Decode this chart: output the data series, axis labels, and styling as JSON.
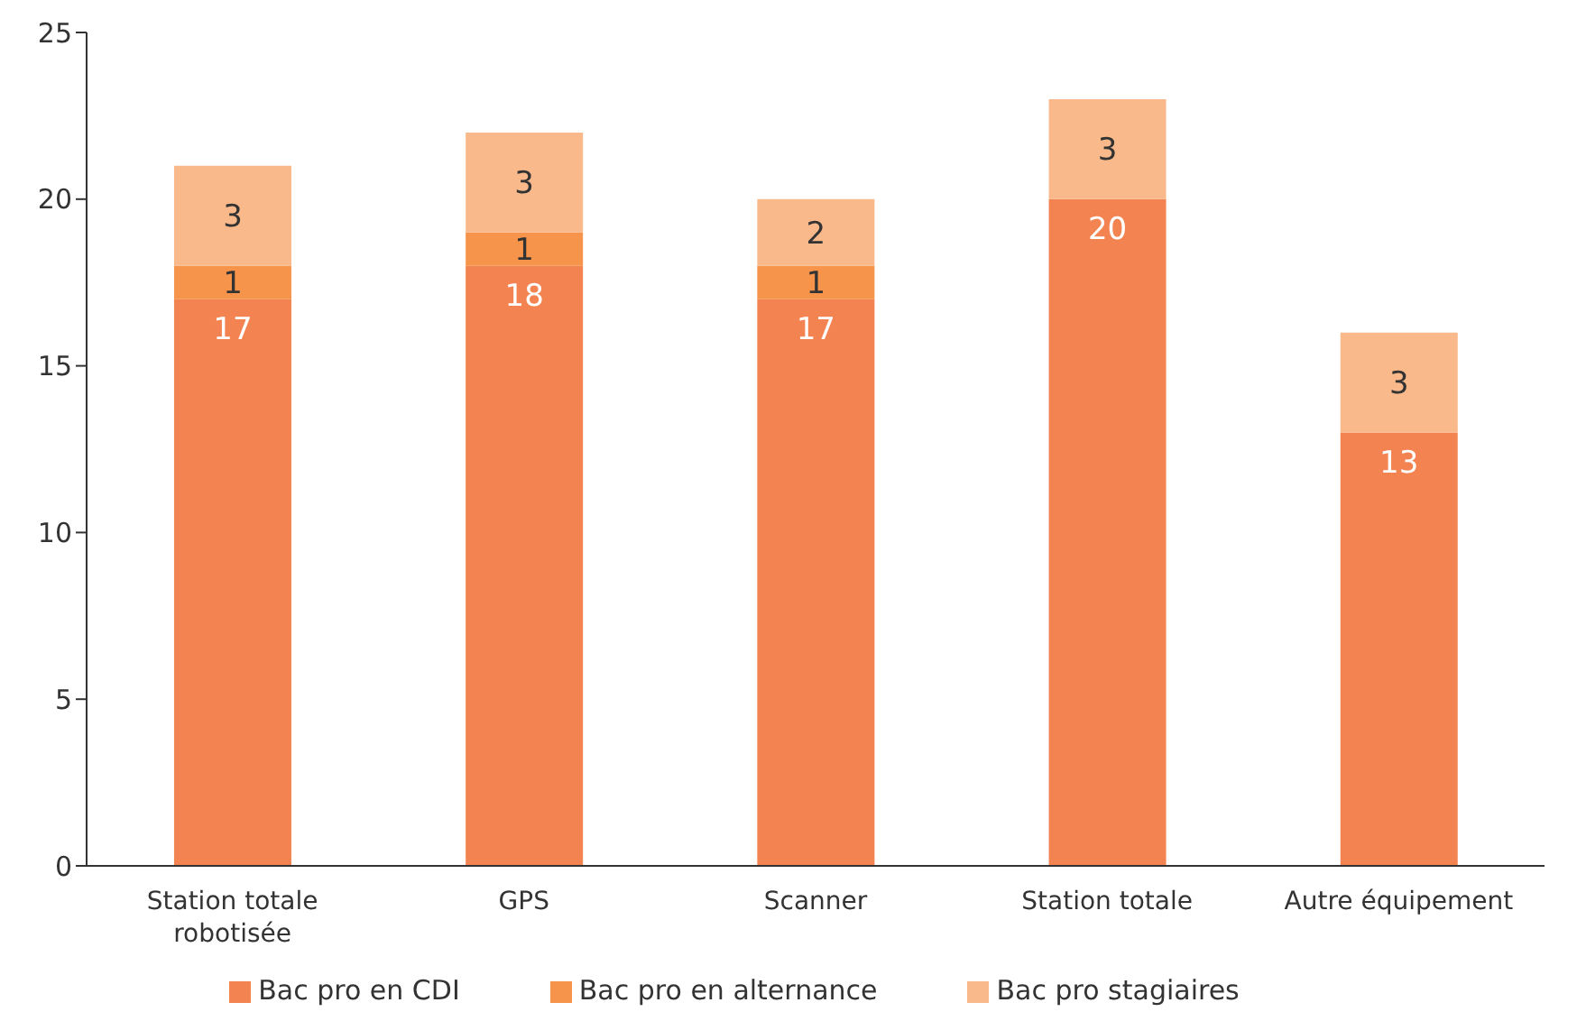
{
  "chart_data": {
    "type": "bar",
    "stacked": true,
    "categories": [
      "Station totale robotisée",
      "GPS",
      "Scanner",
      "Station totale",
      "Autre équipement"
    ],
    "series": [
      {
        "name": "Bac pro en CDI",
        "color": "#f38452",
        "values": [
          17,
          18,
          17,
          20,
          13
        ]
      },
      {
        "name": "Bac pro en alternance",
        "color": "#f5944a",
        "values": [
          1,
          1,
          1,
          null,
          null
        ]
      },
      {
        "name": "Bac pro stagiaires",
        "color": "#f9b98a",
        "values": [
          3,
          3,
          2,
          3,
          3
        ]
      }
    ],
    "ylim": [
      0,
      25
    ],
    "yticks": [
      0,
      5,
      10,
      15,
      20,
      25
    ],
    "grid": false,
    "legend": "bottom",
    "data_labels": true
  }
}
